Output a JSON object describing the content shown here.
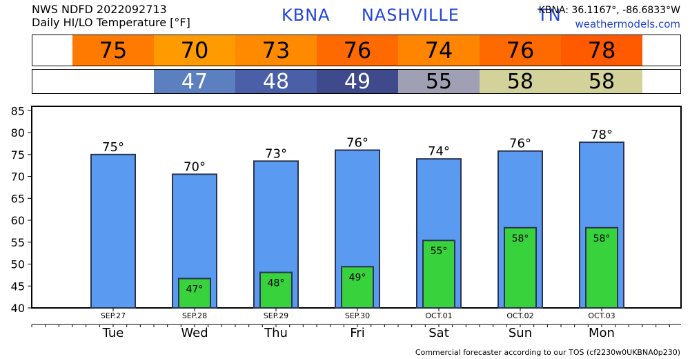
{
  "header": {
    "line1": "NWS NDFD 2022092713",
    "line2": "Daily HI/LO Temperature [°F]",
    "title": "KBNA  NASHVILLE     TN",
    "coords": "KBNA: 36.1167°, -86.6833°W",
    "site": "weathermodels.com"
  },
  "strips": {
    "hi": [
      {
        "text": "75",
        "color": "#ff7a00",
        "text_color": "#000000"
      },
      {
        "text": "70",
        "color": "#ff9a00",
        "text_color": "#000000"
      },
      {
        "text": "73",
        "color": "#ff8a00",
        "text_color": "#000000"
      },
      {
        "text": "76",
        "color": "#ff6a00",
        "text_color": "#000000"
      },
      {
        "text": "74",
        "color": "#ff8400",
        "text_color": "#000000"
      },
      {
        "text": "76",
        "color": "#ff6a00",
        "text_color": "#000000"
      },
      {
        "text": "78",
        "color": "#ff5a00",
        "text_color": "#000000"
      }
    ],
    "lo": [
      {
        "text": "47",
        "color": "#5b7fbf",
        "text_color": "#ffffff"
      },
      {
        "text": "48",
        "color": "#4a5fa8",
        "text_color": "#ffffff"
      },
      {
        "text": "49",
        "color": "#3e4a8c",
        "text_color": "#ffffff"
      },
      {
        "text": "55",
        "color": "#a0a0b4",
        "text_color": "#000000"
      },
      {
        "text": "58",
        "color": "#d2d29a",
        "text_color": "#000000"
      },
      {
        "text": "58",
        "color": "#d2d29a",
        "text_color": "#000000"
      }
    ]
  },
  "chart_data": {
    "type": "bar",
    "title": "Daily HI/LO Temperature [°F]",
    "categories": [
      "SEP.27",
      "SEP.28",
      "SEP.29",
      "SEP.30",
      "OCT.01",
      "OCT.02",
      "OCT.03"
    ],
    "days": [
      "Tue",
      "Wed",
      "Thu",
      "Fri",
      "Sat",
      "Sun",
      "Mon"
    ],
    "series": [
      {
        "name": "HI",
        "color": "#5a9af0",
        "values": [
          75,
          70.5,
          73.5,
          76,
          74,
          75.8,
          77.8
        ],
        "labels": [
          "75°",
          "70°",
          "73°",
          "76°",
          "74°",
          "76°",
          "78°"
        ]
      },
      {
        "name": "LO",
        "color": "#37d23c",
        "values": [
          null,
          46.7,
          48.1,
          49.4,
          55.4,
          58.3,
          58.3
        ],
        "labels": [
          "",
          "47°",
          "48°",
          "49°",
          "55°",
          "58°",
          "58°"
        ]
      }
    ],
    "ylim": [
      40,
      86
    ],
    "yticks": [
      40,
      45,
      50,
      55,
      60,
      65,
      70,
      75,
      80,
      85
    ],
    "grid": false
  },
  "footer": "Commercial forecaster according to our TOS (cf2230w0UKBNA0p230)"
}
